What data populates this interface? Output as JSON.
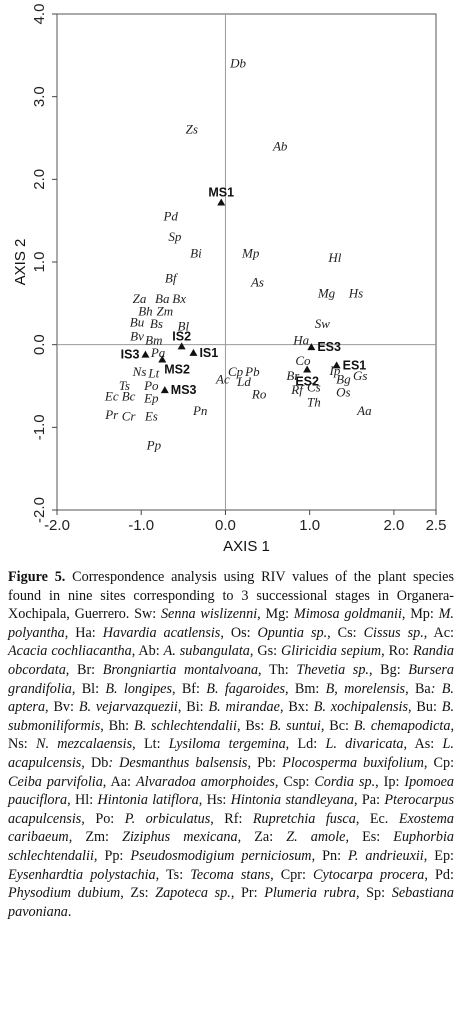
{
  "chart_data": {
    "type": "scatter",
    "xlabel": "AXIS 1",
    "ylabel": "AXIS 2",
    "xlim": [
      -2.0,
      2.5
    ],
    "ylim": [
      -2.0,
      4.0
    ],
    "xticks": [
      "-2.0",
      "-1.0",
      "0.0",
      "1.0",
      "2.0",
      "2.5"
    ],
    "xtick_values": [
      -2.0,
      -1.0,
      0.0,
      1.0,
      2.0,
      2.5
    ],
    "yticks": [
      "-2.0",
      "-1.0",
      "0.0",
      "1.0",
      "2.0",
      "3.0",
      "4.0"
    ],
    "ytick_values": [
      -2.0,
      -1.0,
      0.0,
      1.0,
      2.0,
      3.0,
      4.0
    ],
    "grid": false,
    "reference_lines": [
      0,
      0
    ],
    "species": [
      {
        "label": "Db",
        "x": 0.15,
        "y": 3.4
      },
      {
        "label": "Zs",
        "x": -0.4,
        "y": 2.6
      },
      {
        "label": "Ab",
        "x": 0.65,
        "y": 2.4
      },
      {
        "label": "Pd",
        "x": -0.65,
        "y": 1.55
      },
      {
        "label": "Sp",
        "x": -0.6,
        "y": 1.3
      },
      {
        "label": "Bi",
        "x": -0.35,
        "y": 1.1
      },
      {
        "label": "Mp",
        "x": 0.3,
        "y": 1.1
      },
      {
        "label": "Hl",
        "x": 1.3,
        "y": 1.05
      },
      {
        "label": "Bf",
        "x": -0.65,
        "y": 0.8
      },
      {
        "label": "As",
        "x": 0.38,
        "y": 0.75
      },
      {
        "label": "Mg",
        "x": 1.2,
        "y": 0.62
      },
      {
        "label": "Hs",
        "x": 1.55,
        "y": 0.62
      },
      {
        "label": "Za",
        "x": -1.02,
        "y": 0.55
      },
      {
        "label": "Ba",
        "x": -0.75,
        "y": 0.55
      },
      {
        "label": "Bx",
        "x": -0.55,
        "y": 0.55
      },
      {
        "label": "Bh",
        "x": -0.95,
        "y": 0.4
      },
      {
        "label": "Zm",
        "x": -0.72,
        "y": 0.4
      },
      {
        "label": "Bu",
        "x": -1.05,
        "y": 0.27
      },
      {
        "label": "Bs",
        "x": -0.82,
        "y": 0.25
      },
      {
        "label": "Bl",
        "x": -0.5,
        "y": 0.22
      },
      {
        "label": "Sw",
        "x": 1.15,
        "y": 0.25
      },
      {
        "label": "Bv",
        "x": -1.05,
        "y": 0.1
      },
      {
        "label": "Bm",
        "x": -0.85,
        "y": 0.05
      },
      {
        "label": "Ha",
        "x": 0.9,
        "y": 0.05
      },
      {
        "label": "Pa",
        "x": -0.8,
        "y": -0.1
      },
      {
        "label": "Co",
        "x": 0.92,
        "y": -0.2
      },
      {
        "label": "Ns",
        "x": -1.02,
        "y": -0.33
      },
      {
        "label": "Lt",
        "x": -0.85,
        "y": -0.35
      },
      {
        "label": "Cp",
        "x": 0.12,
        "y": -0.33
      },
      {
        "label": "Pb",
        "x": 0.32,
        "y": -0.33
      },
      {
        "label": "Ac",
        "x": -0.03,
        "y": -0.42
      },
      {
        "label": "Ld",
        "x": 0.22,
        "y": -0.45
      },
      {
        "label": "Br",
        "x": 0.8,
        "y": -0.38
      },
      {
        "label": "Ip",
        "x": 1.3,
        "y": -0.32
      },
      {
        "label": "Gs",
        "x": 1.6,
        "y": -0.38
      },
      {
        "label": "Bg",
        "x": 1.4,
        "y": -0.42
      },
      {
        "label": "Ts",
        "x": -1.2,
        "y": -0.5
      },
      {
        "label": "Po",
        "x": -0.88,
        "y": -0.5
      },
      {
        "label": "Rf",
        "x": 0.85,
        "y": -0.55
      },
      {
        "label": "Cs",
        "x": 1.05,
        "y": -0.52
      },
      {
        "label": "Os",
        "x": 1.4,
        "y": -0.58
      },
      {
        "label": "Ro",
        "x": 0.4,
        "y": -0.6
      },
      {
        "label": "Ec",
        "x": -1.35,
        "y": -0.63
      },
      {
        "label": "Bc",
        "x": -1.15,
        "y": -0.63
      },
      {
        "label": "Ep",
        "x": -0.88,
        "y": -0.65
      },
      {
        "label": "Th",
        "x": 1.05,
        "y": -0.7
      },
      {
        "label": "Pn",
        "x": -0.3,
        "y": -0.8
      },
      {
        "label": "Aa",
        "x": 1.65,
        "y": -0.8
      },
      {
        "label": "Pr",
        "x": -1.35,
        "y": -0.85
      },
      {
        "label": "Cr",
        "x": -1.15,
        "y": -0.87
      },
      {
        "label": "Es",
        "x": -0.88,
        "y": -0.87
      },
      {
        "label": "Pp",
        "x": -0.85,
        "y": -1.22
      }
    ],
    "sites": [
      {
        "label": "MS1",
        "x": -0.05,
        "y": 1.72,
        "label_side": "above"
      },
      {
        "label": "IS2",
        "x": -0.52,
        "y": -0.02,
        "label_side": "above"
      },
      {
        "label": "IS1",
        "x": -0.38,
        "y": -0.1,
        "label_side": "right"
      },
      {
        "label": "IS3",
        "x": -0.95,
        "y": -0.12,
        "label_side": "left"
      },
      {
        "label": "MS2",
        "x": -0.75,
        "y": -0.18,
        "label_side": "below-right"
      },
      {
        "label": "MS3",
        "x": -0.72,
        "y": -0.55,
        "label_side": "right"
      },
      {
        "label": "ES3",
        "x": 1.02,
        "y": -0.03,
        "label_side": "right"
      },
      {
        "label": "ES2",
        "x": 0.97,
        "y": -0.3,
        "label_side": "below"
      },
      {
        "label": "ES1",
        "x": 1.32,
        "y": -0.25,
        "label_side": "right"
      }
    ]
  },
  "caption_segments": [
    {
      "t": "Figure 5.",
      "s": "b"
    },
    {
      "t": " Correspondence analysis using RIV values of the plant species found in nine sites corresponding to 3 successional stages in Organera-Xochipala, Guerrero. Sw: ",
      "s": "n"
    },
    {
      "t": "Senna wislizenni",
      "s": "i"
    },
    {
      "t": ", Mg: ",
      "s": "n"
    },
    {
      "t": "Mimosa goldmanii",
      "s": "i"
    },
    {
      "t": ", Mp: ",
      "s": "n"
    },
    {
      "t": "M. polyantha",
      "s": "i"
    },
    {
      "t": ", Ha: ",
      "s": "n"
    },
    {
      "t": "Havardia acatlensis",
      "s": "i"
    },
    {
      "t": ", Os: ",
      "s": "n"
    },
    {
      "t": "Opuntia sp.",
      "s": "i"
    },
    {
      "t": ", Cs: ",
      "s": "n"
    },
    {
      "t": "Cissus sp.",
      "s": "i"
    },
    {
      "t": ", Ac: ",
      "s": "n"
    },
    {
      "t": "Acacia cochliacantha",
      "s": "i"
    },
    {
      "t": ", Ab: ",
      "s": "n"
    },
    {
      "t": "A. subangulata",
      "s": "i"
    },
    {
      "t": ", Gs: ",
      "s": "n"
    },
    {
      "t": "Gliricidia sepium",
      "s": "i"
    },
    {
      "t": ", Ro: ",
      "s": "n"
    },
    {
      "t": "Randia obcordata",
      "s": "i"
    },
    {
      "t": ", Br: ",
      "s": "n"
    },
    {
      "t": "Brongniartia montalvoana",
      "s": "i"
    },
    {
      "t": ", Th: ",
      "s": "n"
    },
    {
      "t": "Thevetia sp.",
      "s": "i"
    },
    {
      "t": ", Bg: ",
      "s": "n"
    },
    {
      "t": "Bursera grandifolia",
      "s": "i"
    },
    {
      "t": ", Bl: ",
      "s": "n"
    },
    {
      "t": "B. longipes",
      "s": "i"
    },
    {
      "t": ", Bf: ",
      "s": "n"
    },
    {
      "t": "B. fagaroides",
      "s": "i"
    },
    {
      "t": ", Bm: ",
      "s": "n"
    },
    {
      "t": "B, morelensis",
      "s": "i"
    },
    {
      "t": ", Ba",
      "s": "n"
    },
    {
      "t": ": B. aptera",
      "s": "i"
    },
    {
      "t": ", Bv: ",
      "s": "n"
    },
    {
      "t": "B. vejarvazquezii",
      "s": "i"
    },
    {
      "t": ", Bi: ",
      "s": "n"
    },
    {
      "t": "B. mirandae",
      "s": "i"
    },
    {
      "t": ", Bx: ",
      "s": "n"
    },
    {
      "t": "B. xochipalensis",
      "s": "i"
    },
    {
      "t": ", Bu: ",
      "s": "n"
    },
    {
      "t": "B. submoniliformis",
      "s": "i"
    },
    {
      "t": ", Bh: ",
      "s": "n"
    },
    {
      "t": "B. schlechtendalii",
      "s": "i"
    },
    {
      "t": ", Bs: ",
      "s": "n"
    },
    {
      "t": "B. suntui",
      "s": "i"
    },
    {
      "t": ", Bc: ",
      "s": "n"
    },
    {
      "t": "B. chemapodicta",
      "s": "i"
    },
    {
      "t": ", Ns: ",
      "s": "n"
    },
    {
      "t": "N. mezcalaensis",
      "s": "i"
    },
    {
      "t": ", Lt: ",
      "s": "n"
    },
    {
      "t": "Lysiloma tergemina",
      "s": "i"
    },
    {
      "t": ", Ld: ",
      "s": "n"
    },
    {
      "t": "L. divaricata",
      "s": "i"
    },
    {
      "t": ", As: ",
      "s": "n"
    },
    {
      "t": "L. acapulcensis",
      "s": "i"
    },
    {
      "t": ", Db",
      "s": "n"
    },
    {
      "t": ": Desmanthus balsensis",
      "s": "i"
    },
    {
      "t": ", Pb: ",
      "s": "n"
    },
    {
      "t": "Plocosperma buxifolium",
      "s": "i"
    },
    {
      "t": ", Cp: ",
      "s": "n"
    },
    {
      "t": "Ceiba parvifolia",
      "s": "i"
    },
    {
      "t": ", Aa: ",
      "s": "n"
    },
    {
      "t": "Alvaradoa amorphoides",
      "s": "i"
    },
    {
      "t": ", Csp: ",
      "s": "n"
    },
    {
      "t": "Cordia sp.",
      "s": "i"
    },
    {
      "t": ", Ip: ",
      "s": "n"
    },
    {
      "t": "Ipomoea pauciflora",
      "s": "i"
    },
    {
      "t": ", Hl: ",
      "s": "n"
    },
    {
      "t": "Hintonia latiflora",
      "s": "i"
    },
    {
      "t": ", Hs: ",
      "s": "n"
    },
    {
      "t": "Hintonia standleyana",
      "s": "i"
    },
    {
      "t": ", Pa: ",
      "s": "n"
    },
    {
      "t": "Pterocarpus acapulcensis",
      "s": "i"
    },
    {
      "t": ", Po: ",
      "s": "n"
    },
    {
      "t": "P. orbiculatus",
      "s": "i"
    },
    {
      "t": ", Rf: ",
      "s": "n"
    },
    {
      "t": "Rupretchia fusca",
      "s": "i"
    },
    {
      "t": ", Ec. ",
      "s": "n"
    },
    {
      "t": "Exostema caribaeum",
      "s": "i"
    },
    {
      "t": ", Zm: ",
      "s": "n"
    },
    {
      "t": "Ziziphus mexicana",
      "s": "i"
    },
    {
      "t": ", Za: ",
      "s": "n"
    },
    {
      "t": "Z. amole",
      "s": "i"
    },
    {
      "t": ", Es: ",
      "s": "n"
    },
    {
      "t": "Euphorbia schlechtendalii",
      "s": "i"
    },
    {
      "t": ", Pp: ",
      "s": "n"
    },
    {
      "t": "Pseudosmodigium perniciosum",
      "s": "i"
    },
    {
      "t": ", Pn: ",
      "s": "n"
    },
    {
      "t": "P. andrieuxii",
      "s": "i"
    },
    {
      "t": ", Ep: ",
      "s": "n"
    },
    {
      "t": "Eysenhardtia polystachia",
      "s": "i"
    },
    {
      "t": ", Ts: ",
      "s": "n"
    },
    {
      "t": "Tecoma stans,",
      "s": "i"
    },
    {
      "t": " Cpr: ",
      "s": "n"
    },
    {
      "t": "Cytocarpa procera",
      "s": "i"
    },
    {
      "t": ", Pd: ",
      "s": "n"
    },
    {
      "t": "Physodium dubium",
      "s": "i"
    },
    {
      "t": ", Zs: ",
      "s": "n"
    },
    {
      "t": "Zapoteca sp.",
      "s": "i"
    },
    {
      "t": ", Pr: ",
      "s": "n"
    },
    {
      "t": "Plumeria rubra",
      "s": "i"
    },
    {
      "t": ", Sp: ",
      "s": "n"
    },
    {
      "t": "Sebastiana pavoniana",
      "s": "i"
    },
    {
      "t": ".",
      "s": "n"
    }
  ]
}
